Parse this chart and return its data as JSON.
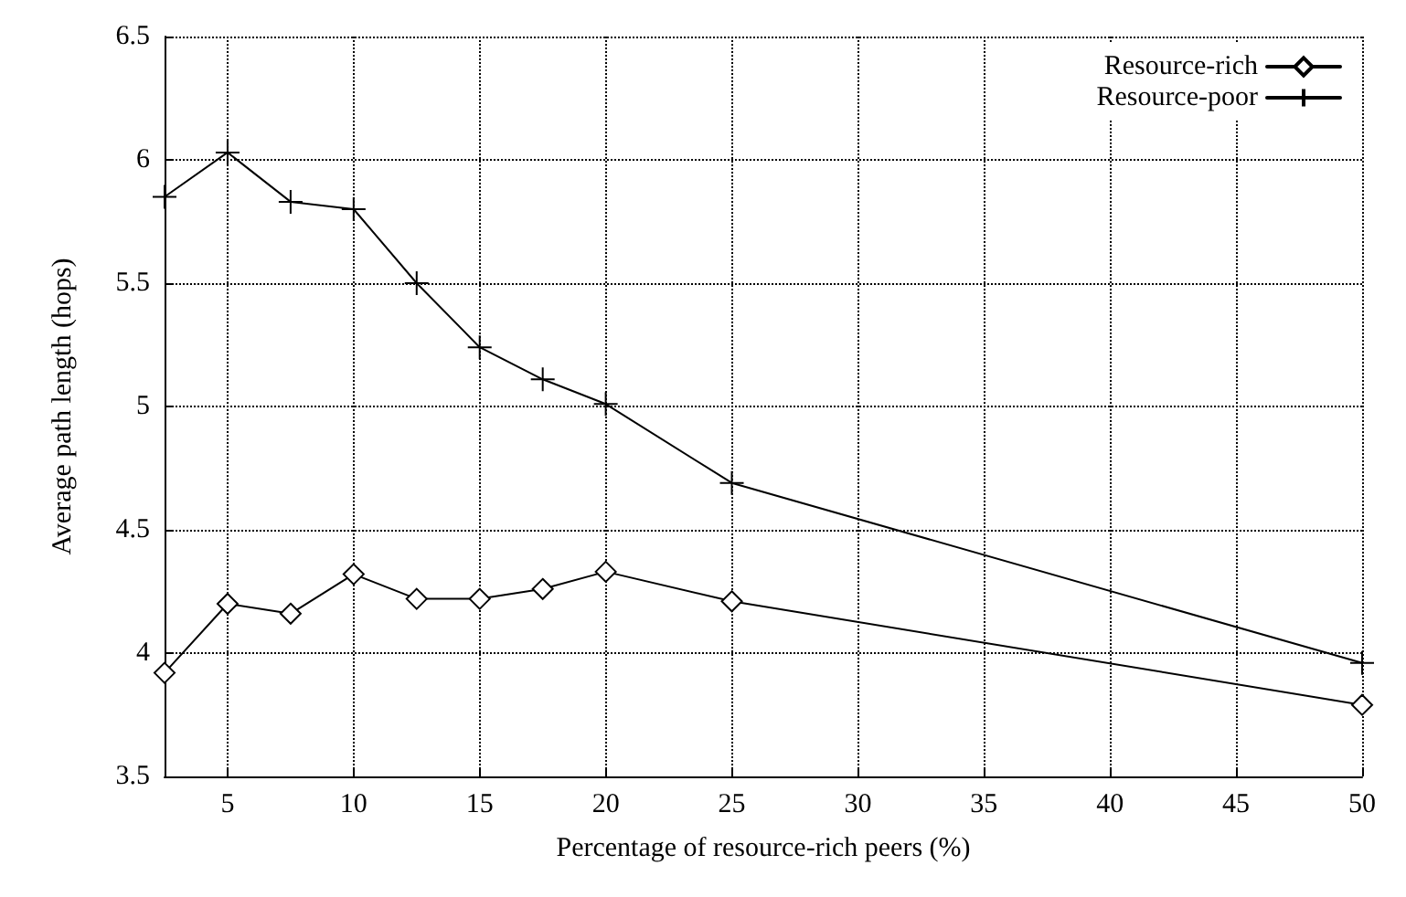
{
  "chart_data": {
    "type": "line",
    "xlabel": "Percentage of resource-rich peers (%)",
    "ylabel": "Average path length (hops)",
    "xlim": [
      2.5,
      50
    ],
    "xticks": [
      5,
      10,
      15,
      20,
      25,
      30,
      35,
      40,
      45,
      50
    ],
    "ylim": [
      3.5,
      6.5
    ],
    "yticks": [
      3.5,
      4,
      4.5,
      5,
      5.5,
      6,
      6.5
    ],
    "grid": true,
    "legend": "top right",
    "line_style": "solid",
    "series": [
      {
        "name": "Resource-rich",
        "color": "#000000",
        "marker": "diamond",
        "x": [
          2.5,
          5,
          7.5,
          10,
          12.5,
          15,
          17.5,
          20,
          25,
          50
        ],
        "values": [
          3.92,
          4.2,
          4.16,
          4.32,
          4.22,
          4.22,
          4.26,
          4.33,
          4.21,
          3.79
        ]
      },
      {
        "name": "Resource-poor",
        "color": "#000000",
        "marker": "cross",
        "x": [
          2.5,
          5,
          7.5,
          10,
          12.5,
          15,
          17.5,
          20,
          25,
          50
        ],
        "values": [
          5.85,
          6.03,
          5.83,
          5.8,
          5.5,
          5.24,
          5.11,
          5.01,
          4.69,
          3.96
        ]
      }
    ]
  }
}
